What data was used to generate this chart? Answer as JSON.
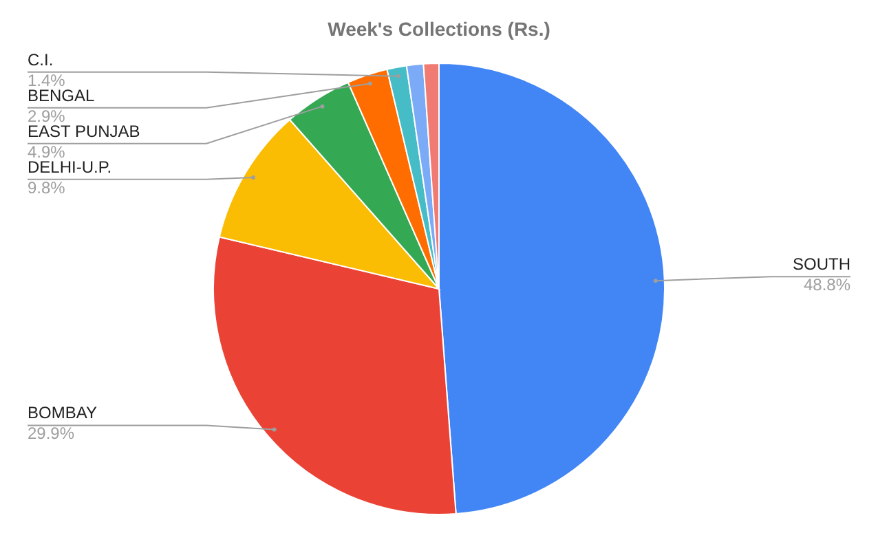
{
  "chart_data": {
    "type": "pie",
    "title": "Week's Collections (Rs.)",
    "categories": [
      "SOUTH",
      "BOMBAY",
      "DELHI-U.P.",
      "EAST PUNJAB",
      "BENGAL",
      "C.I.",
      null,
      null
    ],
    "values": [
      48.8,
      29.9,
      9.8,
      4.9,
      2.9,
      1.4,
      1.2,
      1.1
    ],
    "colors": [
      "#4285f4",
      "#ea4335",
      "#fbbc04",
      "#34a853",
      "#ff6d01",
      "#46bdc6",
      "#7baaf7",
      "#f07b72"
    ],
    "value_labels": [
      "48.8%",
      "29.9%",
      "9.8%",
      "4.9%",
      "2.9%",
      "1.4%",
      null,
      null
    ],
    "legend": false
  }
}
